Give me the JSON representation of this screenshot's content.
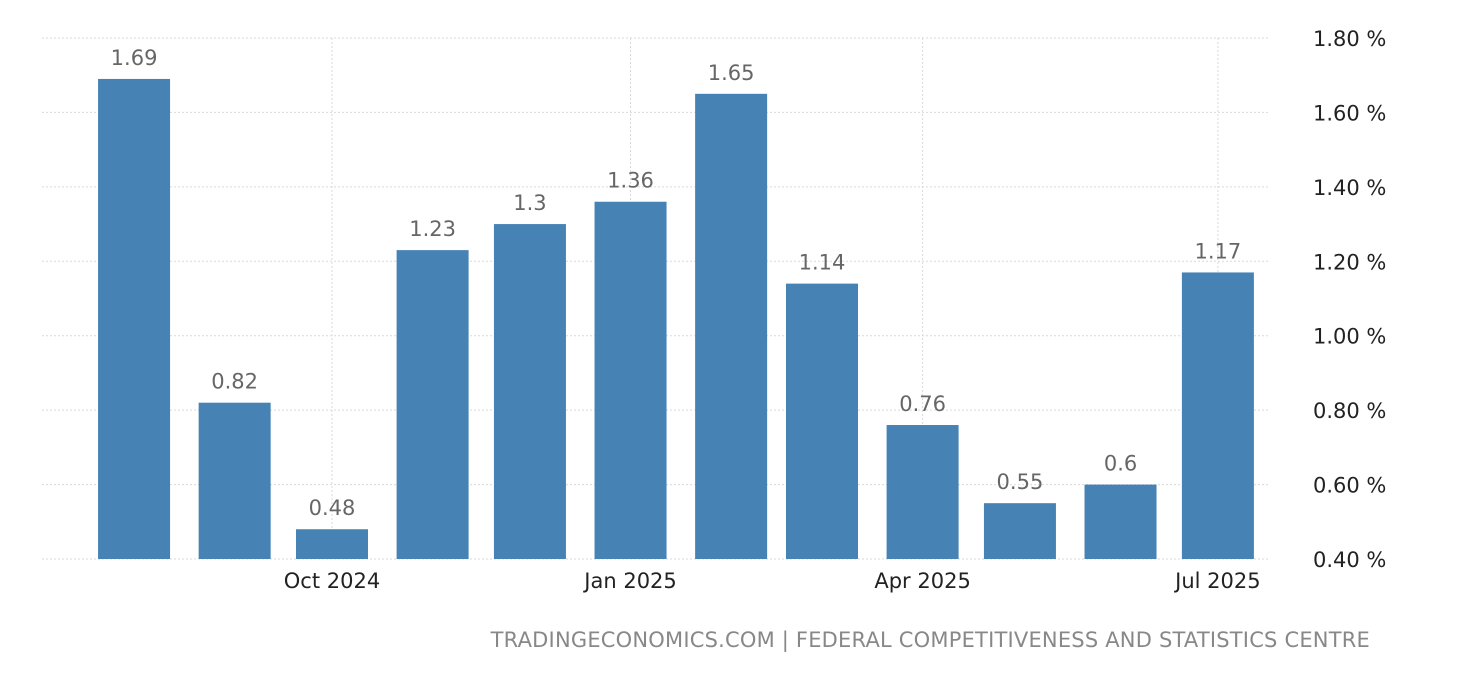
{
  "chart_data": {
    "type": "bar",
    "categories": [
      "2024-08",
      "2024-09",
      "2024-10",
      "2024-11",
      "2024-12",
      "2025-01",
      "2025-02",
      "2025-03",
      "2025-04",
      "2025-05",
      "2025-06",
      "2025-07"
    ],
    "values": [
      1.69,
      0.82,
      0.48,
      1.23,
      1.3,
      1.36,
      1.65,
      1.14,
      0.76,
      0.55,
      0.6,
      1.17
    ],
    "data_labels": [
      "1.69",
      "0.82",
      "0.48",
      "1.23",
      "1.3",
      "1.36",
      "1.65",
      "1.14",
      "0.76",
      "0.55",
      "0.6",
      "1.17"
    ],
    "x_ticks": [
      {
        "date": "2024-10",
        "label": "Oct 2024"
      },
      {
        "date": "2025-01",
        "label": "Jan 2025"
      },
      {
        "date": "2025-04",
        "label": "Apr 2025"
      },
      {
        "date": "2025-07",
        "label": "Jul 2025"
      }
    ],
    "y_ticks": [
      0.4,
      0.6,
      0.8,
      1.0,
      1.2,
      1.4,
      1.6,
      1.8
    ],
    "y_tick_labels": [
      "0.40 %",
      "0.60 %",
      "0.80 %",
      "1.00 %",
      "1.20 %",
      "1.40 %",
      "1.60 %",
      "1.80 %"
    ],
    "ylim": [
      0.4,
      1.8
    ],
    "yaxis_position": "right",
    "grid": true,
    "bar_color": "#4682b4",
    "label_color": "#666666"
  },
  "source": "TRADINGECONOMICS.COM | FEDERAL COMPETITIVENESS AND STATISTICS CENTRE"
}
